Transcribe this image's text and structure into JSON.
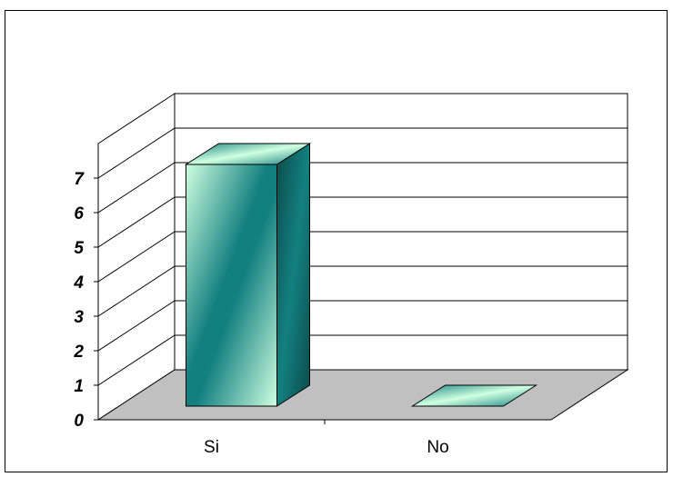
{
  "chart_data": {
    "type": "bar",
    "style": "3d-column",
    "categories": [
      "Si",
      "No"
    ],
    "values": [
      7,
      0
    ],
    "ylim": [
      0,
      7
    ],
    "yticks": [
      0,
      1,
      2,
      3,
      4,
      5,
      6,
      7
    ],
    "title": "",
    "xlabel": "",
    "ylabel": "",
    "grid": true,
    "legend": "none",
    "colors": {
      "bar_light": "#cfffe0",
      "bar_mid": "#138080",
      "bar_dark": "#0c4a4a",
      "floor": "#c0c0c0",
      "grid": "#000000"
    }
  }
}
